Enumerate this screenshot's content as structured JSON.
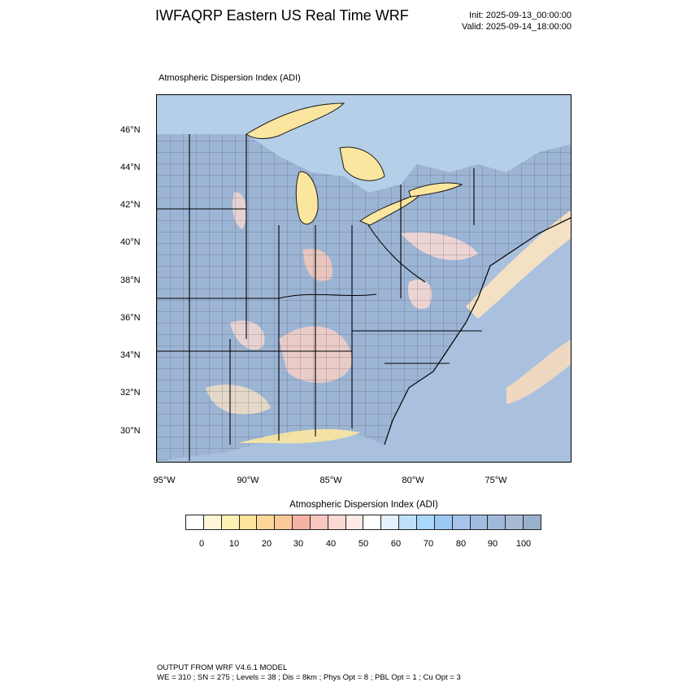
{
  "header": {
    "title": "IWFAQRP Eastern US Real Time WRF",
    "init": "Init: 2025-09-13_00:00:00",
    "valid": "Valid: 2025-09-14_18:00:00"
  },
  "map": {
    "subtitle": "Atmospheric Dispersion Index   (ADI)",
    "lat_labels": [
      "46°N",
      "44°N",
      "42°N",
      "40°N",
      "38°N",
      "36°N",
      "34°N",
      "32°N",
      "30°N"
    ],
    "lon_labels": [
      "95°W",
      "90°W",
      "85°W",
      "80°W",
      "75°W"
    ],
    "colors": {
      "water": "#a9c1de",
      "land_high": "#9db5d5",
      "lake_low": "#fbe6a0",
      "boundary": "#1a1a1a"
    }
  },
  "colorbar": {
    "title": "Atmospheric Dispersion Index  (ADI)",
    "tick_labels": [
      "0",
      "10",
      "20",
      "30",
      "40",
      "50",
      "60",
      "70",
      "80",
      "90",
      "100"
    ],
    "colors": [
      "#ffffff",
      "#fff6d5",
      "#ffefb5",
      "#ffe59b",
      "#fdd89a",
      "#f9c99a",
      "#f5b3a3",
      "#f7c8c0",
      "#fad9d3",
      "#fde9e6",
      "#ffffff",
      "#e4f0fc",
      "#bfe0fb",
      "#a9d8fb",
      "#9cc9f4",
      "#a6c3ec",
      "#a1bbe3",
      "#a0b8da",
      "#a7bcd4",
      "#9bb0cc"
    ]
  },
  "footer": {
    "line1": "OUTPUT FROM WRF V4.6.1 MODEL",
    "line2": "WE = 310 ; SN = 275 ; Levels = 38 ; Dis = 8km ; Phys Opt = 8 ; PBL Opt = 1 ; Cu Opt = 3"
  }
}
